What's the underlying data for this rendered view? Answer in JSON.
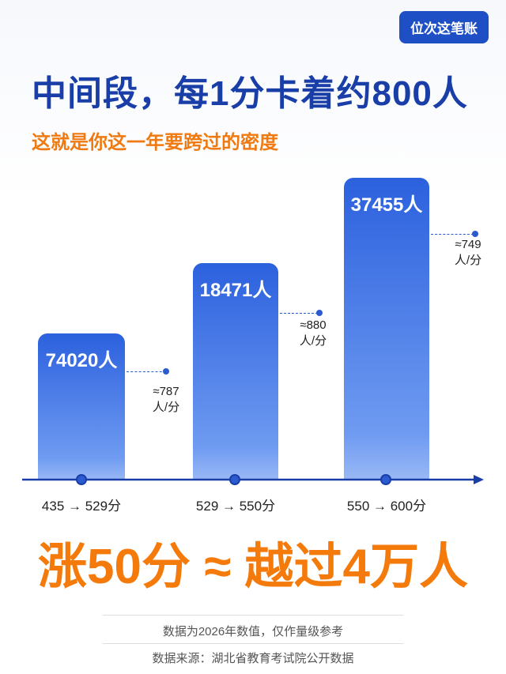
{
  "badge": "位次这笔账",
  "title": "中间段，每1分卡着约800人",
  "subtitle": "这就是你这一年要跨过的密度",
  "bars": [
    {
      "label": "74020人",
      "range": "435 → 529分",
      "density": "≈787",
      "unit": "人/分"
    },
    {
      "label": "18471人",
      "range": "529 → 550分",
      "density": "≈880",
      "unit": "人/分"
    },
    {
      "label": "37455人",
      "range": "550 → 600分",
      "density": "≈749",
      "unit": "人/分"
    }
  ],
  "headline": "涨50分 ≈ 越过4万人",
  "notes": [
    "数据为2026年数值，仅作量级参考",
    "数据来源：湖北省教育考试院公开数据"
  ]
}
